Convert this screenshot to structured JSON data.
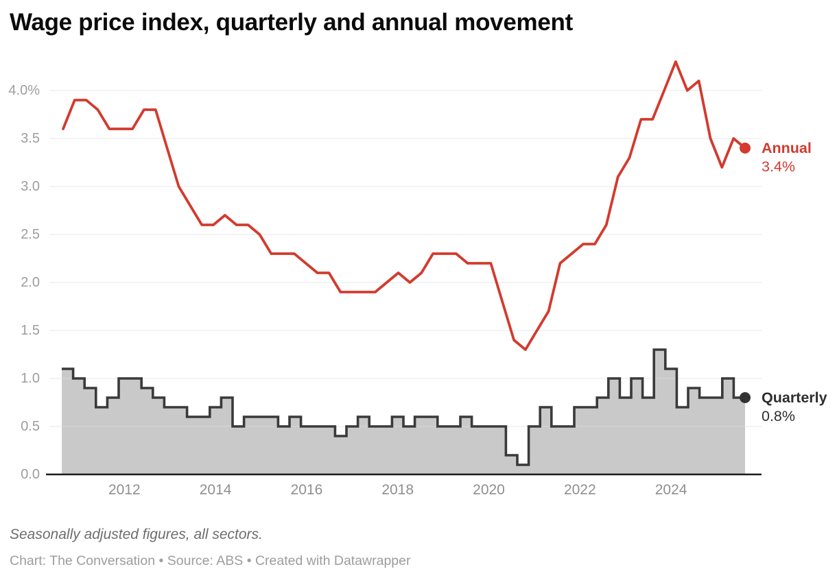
{
  "header": {
    "title": "Wage price index, quarterly and annual movement"
  },
  "chart_data": {
    "type": "line",
    "title": "Wage price index, quarterly and annual movement",
    "x_range": [
      "2010-Q3",
      "2025-Q2"
    ],
    "x_frequency": "quarterly",
    "x_tick_labels": [
      "2012",
      "2014",
      "2016",
      "2018",
      "2020",
      "2022",
      "2024"
    ],
    "y_tick_values": [
      0,
      0.5,
      1,
      1.5,
      2,
      2.5,
      3,
      3.5,
      4
    ],
    "y_tick_labels": [
      "0.0",
      "0.5",
      "1.0",
      "1.5",
      "2.0",
      "2.5",
      "3.0",
      "3.5",
      "4.0%"
    ],
    "ylim": [
      0,
      4.35
    ],
    "grid": true,
    "legend_position": "right-of-line-end",
    "series": [
      {
        "name": "Annual",
        "type": "line",
        "color": "#d23b2e",
        "end_label": "3.4%",
        "values": [
          3.6,
          3.9,
          3.9,
          3.8,
          3.6,
          3.6,
          3.6,
          3.8,
          3.8,
          3.4,
          3.0,
          2.8,
          2.6,
          2.6,
          2.7,
          2.6,
          2.6,
          2.5,
          2.3,
          2.3,
          2.3,
          2.2,
          2.1,
          2.1,
          1.9,
          1.9,
          1.9,
          1.9,
          2.0,
          2.1,
          2.0,
          2.1,
          2.3,
          2.3,
          2.3,
          2.2,
          2.2,
          2.2,
          1.8,
          1.4,
          1.3,
          1.5,
          1.7,
          2.2,
          2.3,
          2.4,
          2.4,
          2.6,
          3.1,
          3.3,
          3.7,
          3.7,
          4.0,
          4.3,
          4.0,
          4.1,
          3.5,
          3.2,
          3.5,
          3.4
        ]
      },
      {
        "name": "Quarterly",
        "type": "step-area",
        "line_color": "#3a3a3a",
        "fill_color": "#c9c9c9",
        "end_label": "0.8%",
        "values": [
          1.1,
          1.0,
          0.9,
          0.7,
          0.8,
          1.0,
          1.0,
          0.9,
          0.8,
          0.7,
          0.7,
          0.6,
          0.6,
          0.7,
          0.8,
          0.5,
          0.6,
          0.6,
          0.6,
          0.5,
          0.6,
          0.5,
          0.5,
          0.5,
          0.4,
          0.5,
          0.6,
          0.5,
          0.5,
          0.6,
          0.5,
          0.6,
          0.6,
          0.5,
          0.5,
          0.6,
          0.5,
          0.5,
          0.5,
          0.2,
          0.1,
          0.5,
          0.7,
          0.5,
          0.5,
          0.7,
          0.7,
          0.8,
          1.0,
          0.8,
          1.0,
          0.8,
          1.3,
          1.1,
          0.7,
          0.9,
          0.8,
          0.8,
          1.0,
          0.8
        ]
      }
    ],
    "colors": {
      "annual_line": "#d23b2e",
      "quarterly_step_line": "#3a3a3a",
      "quarterly_fill": "#c9c9c9",
      "gridline": "#e7e7e7",
      "baseline": "#1b1b1b",
      "axis_label": "#9d9d9d"
    }
  },
  "footer": {
    "note": "Seasonally adjusted figures, all sectors.",
    "credit": "Chart: The Conversation • Source: ABS • Created with Datawrapper"
  }
}
